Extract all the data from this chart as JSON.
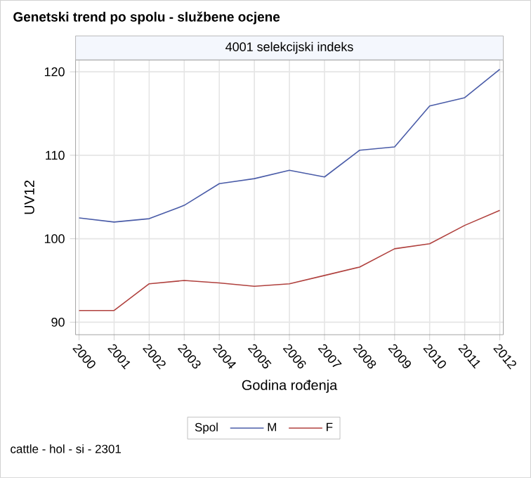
{
  "chart_data": {
    "type": "line",
    "title": "Genetski trend po spolu - službene ocjene",
    "subtitle": "4001 selekcijski indeks",
    "xlabel": "Godina rođenja",
    "ylabel": "UV12",
    "legend_title": "Spol",
    "x": [
      2000,
      2001,
      2002,
      2003,
      2004,
      2005,
      2006,
      2007,
      2008,
      2009,
      2010,
      2011,
      2012
    ],
    "series": [
      {
        "name": "M",
        "color": "#4a5ca8",
        "values": [
          102.5,
          102.0,
          102.4,
          104.0,
          106.6,
          107.2,
          108.2,
          107.4,
          110.6,
          111.0,
          115.9,
          116.9,
          120.3
        ]
      },
      {
        "name": "F",
        "color": "#b0413e",
        "values": [
          91.4,
          91.4,
          94.6,
          95.0,
          94.7,
          94.3,
          94.6,
          95.6,
          96.6,
          98.8,
          99.4,
          101.6,
          103.4
        ]
      }
    ],
    "xlim": [
      1999.9,
      2012.1
    ],
    "ylim": [
      88.5,
      121.4
    ],
    "xticks": [
      2000,
      2001,
      2002,
      2003,
      2004,
      2005,
      2006,
      2007,
      2008,
      2009,
      2010,
      2011,
      2012
    ],
    "yticks": [
      90,
      100,
      110,
      120
    ],
    "grid": true,
    "legend": "bottom",
    "annotations": [
      "cattle - hol - si - 2301"
    ]
  }
}
